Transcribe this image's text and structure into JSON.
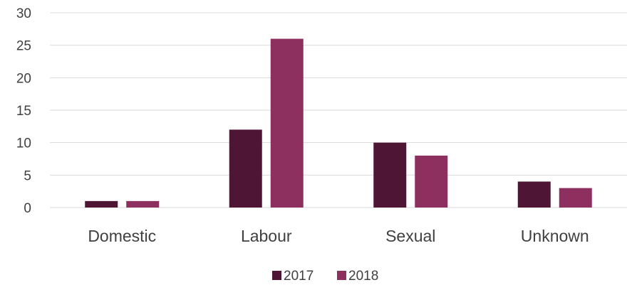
{
  "chart_data": {
    "type": "bar",
    "categories": [
      "Domestic",
      "Labour",
      "Sexual",
      "Unknown"
    ],
    "series": [
      {
        "name": "2017",
        "values": [
          1,
          12,
          10,
          4
        ],
        "color": "#4f1535"
      },
      {
        "name": "2018",
        "values": [
          1,
          26,
          8,
          3
        ],
        "color": "#8d3060"
      }
    ],
    "title": "",
    "xlabel": "",
    "ylabel": "",
    "ylim": [
      0,
      30
    ],
    "yticks": [
      0,
      5,
      10,
      15,
      20,
      25,
      30
    ],
    "grid": true,
    "legend_position": "bottom"
  }
}
